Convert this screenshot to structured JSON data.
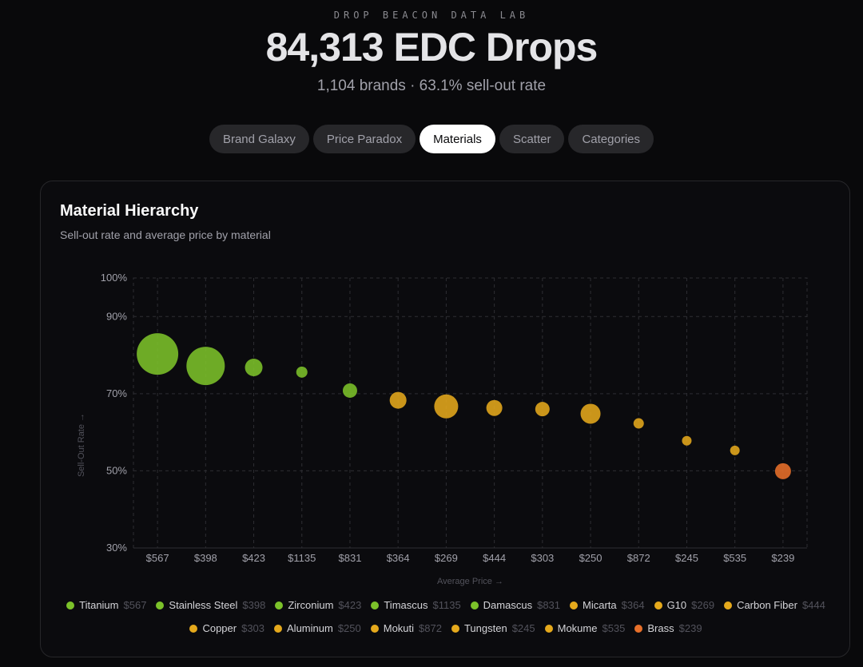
{
  "header": {
    "kicker": "DROP BEACON DATA LAB",
    "title": "84,313 EDC Drops",
    "subtitle": "1,104 brands · 63.1% sell-out rate"
  },
  "tabs": [
    {
      "label": "Brand Galaxy",
      "active": false
    },
    {
      "label": "Price Paradox",
      "active": false
    },
    {
      "label": "Materials",
      "active": true
    },
    {
      "label": "Scatter",
      "active": false
    },
    {
      "label": "Categories",
      "active": false
    }
  ],
  "card": {
    "title": "Material Hierarchy",
    "subtitle": "Sell-out rate and average price by material"
  },
  "colors": {
    "green": "#7cc22a",
    "gold": "#e5a91c",
    "orange": "#e8702a",
    "grid": "#2e2e33",
    "tick": "#a1a1aa",
    "axis_label": "#52525b"
  },
  "chart_data": {
    "type": "scatter",
    "title": "Material Hierarchy",
    "subtitle": "Sell-out rate and average price by material",
    "xlabel": "Average Price →",
    "ylabel": "Sell-Out Rate →",
    "ylim": [
      30,
      100
    ],
    "yticks": [
      {
        "value": 100,
        "label": "100%"
      },
      {
        "value": 90,
        "label": "90%"
      },
      {
        "value": 70,
        "label": "70%"
      },
      {
        "value": 50,
        "label": "50%"
      },
      {
        "value": 30,
        "label": "30%"
      }
    ],
    "grid": true,
    "legend_position": "bottom",
    "points": [
      {
        "name": "Titanium",
        "price_label": "$567",
        "price": 567,
        "sell_out_rate": 80.3,
        "relative_size": 26,
        "color": "#7cc22a"
      },
      {
        "name": "Stainless Steel",
        "price_label": "$398",
        "price": 398,
        "sell_out_rate": 77.2,
        "relative_size": 24,
        "color": "#7cc22a"
      },
      {
        "name": "Zirconium",
        "price_label": "$423",
        "price": 423,
        "sell_out_rate": 76.8,
        "relative_size": 11,
        "color": "#7cc22a"
      },
      {
        "name": "Timascus",
        "price_label": "$1135",
        "price": 1135,
        "sell_out_rate": 75.6,
        "relative_size": 7,
        "color": "#7cc22a"
      },
      {
        "name": "Damascus",
        "price_label": "$831",
        "price": 831,
        "sell_out_rate": 70.8,
        "relative_size": 9,
        "color": "#7cc22a"
      },
      {
        "name": "Micarta",
        "price_label": "$364",
        "price": 364,
        "sell_out_rate": 68.3,
        "relative_size": 10.5,
        "color": "#e5a91c"
      },
      {
        "name": "G10",
        "price_label": "$269",
        "price": 269,
        "sell_out_rate": 66.7,
        "relative_size": 15,
        "color": "#e5a91c"
      },
      {
        "name": "Carbon Fiber",
        "price_label": "$444",
        "price": 444,
        "sell_out_rate": 66.3,
        "relative_size": 10,
        "color": "#e5a91c"
      },
      {
        "name": "Copper",
        "price_label": "$303",
        "price": 303,
        "sell_out_rate": 66.0,
        "relative_size": 9,
        "color": "#e5a91c"
      },
      {
        "name": "Aluminum",
        "price_label": "$250",
        "price": 250,
        "sell_out_rate": 64.8,
        "relative_size": 12.5,
        "color": "#e5a91c"
      },
      {
        "name": "Mokuti",
        "price_label": "$872",
        "price": 872,
        "sell_out_rate": 62.3,
        "relative_size": 6.5,
        "color": "#e5a91c"
      },
      {
        "name": "Tungsten",
        "price_label": "$245",
        "price": 245,
        "sell_out_rate": 57.8,
        "relative_size": 6,
        "color": "#e5a91c"
      },
      {
        "name": "Mokume",
        "price_label": "$535",
        "price": 535,
        "sell_out_rate": 55.3,
        "relative_size": 6,
        "color": "#e5a91c"
      },
      {
        "name": "Brass",
        "price_label": "$239",
        "price": 239,
        "sell_out_rate": 49.9,
        "relative_size": 10,
        "color": "#e8702a"
      }
    ]
  }
}
